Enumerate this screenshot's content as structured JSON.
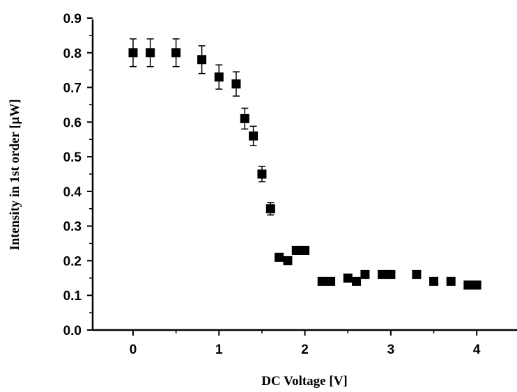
{
  "chart_data": {
    "type": "scatter",
    "title": "",
    "xlabel": "DC Voltage [V]",
    "ylabel": "Intensity in 1st order [μW]",
    "xlim": [
      -0.45,
      4.5
    ],
    "ylim": [
      0.0,
      0.9
    ],
    "x_ticks": [
      0,
      1,
      2,
      3,
      4
    ],
    "x_tick_labels": [
      "0",
      "1",
      "2",
      "3",
      "4"
    ],
    "y_ticks": [
      0.0,
      0.1,
      0.2,
      0.3,
      0.4,
      0.5,
      0.6,
      0.7,
      0.8,
      0.9
    ],
    "y_tick_labels": [
      "0.0",
      "0.1",
      "0.2",
      "0.3",
      "0.4",
      "0.5",
      "0.6",
      "0.7",
      "0.8",
      "0.9"
    ],
    "grid": false,
    "legend": "none",
    "marker": "square",
    "marker_color": "#000000",
    "series": [
      {
        "points": [
          {
            "x": 0.0,
            "y": 0.8,
            "err": 0.04
          },
          {
            "x": 0.2,
            "y": 0.8,
            "err": 0.04
          },
          {
            "x": 0.5,
            "y": 0.8,
            "err": 0.04
          },
          {
            "x": 0.8,
            "y": 0.78,
            "err": 0.04
          },
          {
            "x": 1.0,
            "y": 0.73,
            "err": 0.035
          },
          {
            "x": 1.2,
            "y": 0.71,
            "err": 0.035
          },
          {
            "x": 1.3,
            "y": 0.61,
            "err": 0.03
          },
          {
            "x": 1.4,
            "y": 0.56,
            "err": 0.028
          },
          {
            "x": 1.5,
            "y": 0.45,
            "err": 0.022
          },
          {
            "x": 1.6,
            "y": 0.35,
            "err": 0.018
          },
          {
            "x": 1.7,
            "y": 0.21,
            "err": 0.01
          },
          {
            "x": 1.8,
            "y": 0.2,
            "err": 0.01
          },
          {
            "x": 1.9,
            "y": 0.23,
            "err": 0.01
          },
          {
            "x": 2.0,
            "y": 0.23,
            "err": 0.01
          },
          {
            "x": 2.2,
            "y": 0.14,
            "err": 0.007
          },
          {
            "x": 2.3,
            "y": 0.14,
            "err": 0.007
          },
          {
            "x": 2.5,
            "y": 0.15,
            "err": 0.007
          },
          {
            "x": 2.6,
            "y": 0.14,
            "err": 0.007
          },
          {
            "x": 2.7,
            "y": 0.16,
            "err": 0.008
          },
          {
            "x": 2.9,
            "y": 0.16,
            "err": 0.008
          },
          {
            "x": 3.0,
            "y": 0.16,
            "err": 0.008
          },
          {
            "x": 3.3,
            "y": 0.16,
            "err": 0.008
          },
          {
            "x": 3.5,
            "y": 0.14,
            "err": 0.007
          },
          {
            "x": 3.7,
            "y": 0.14,
            "err": 0.007
          },
          {
            "x": 3.9,
            "y": 0.13,
            "err": 0.006
          },
          {
            "x": 4.0,
            "y": 0.13,
            "err": 0.006
          }
        ]
      }
    ]
  }
}
